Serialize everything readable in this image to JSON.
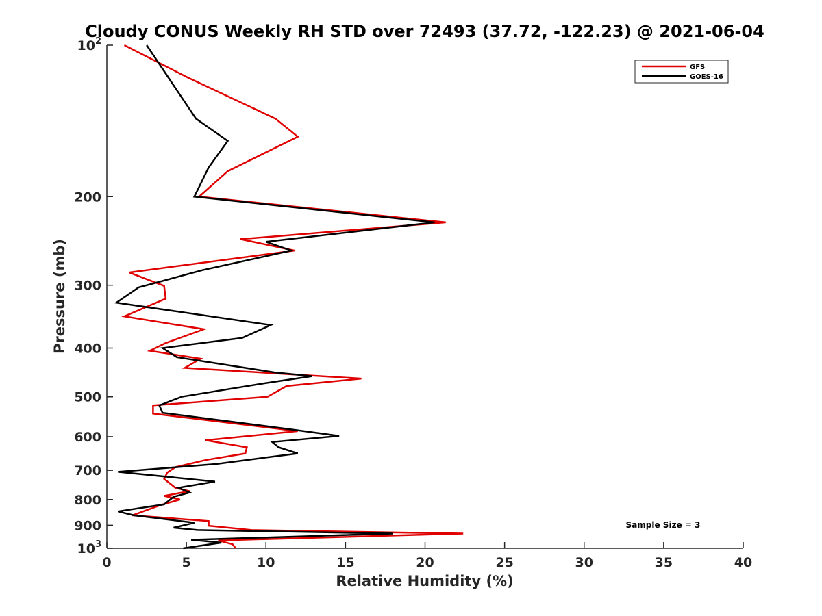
{
  "chart_data": {
    "type": "line",
    "title": "Cloudy CONUS Weekly RH STD over 72493 (37.72, -122.23) @ 2021-06-04",
    "xlabel": "Relative Humidity (%)",
    "ylabel": "Pressure (mb)",
    "xlim": [
      0,
      40
    ],
    "ylim": [
      100,
      1000
    ],
    "y_scale": "log",
    "y_reversed": true,
    "grid": false,
    "legend_position": "top-right",
    "x_ticks": [
      "0",
      "5",
      "10",
      "15",
      "20",
      "25",
      "30",
      "35",
      "40"
    ],
    "x_tick_values": [
      0,
      5,
      10,
      15,
      20,
      25,
      30,
      35,
      40
    ],
    "y_ticks": [
      {
        "value": 100,
        "base": "10",
        "exp": "2"
      },
      {
        "value": 200,
        "base": "200",
        "exp": ""
      },
      {
        "value": 300,
        "base": "300",
        "exp": ""
      },
      {
        "value": 400,
        "base": "400",
        "exp": ""
      },
      {
        "value": 500,
        "base": "500",
        "exp": ""
      },
      {
        "value": 600,
        "base": "600",
        "exp": ""
      },
      {
        "value": 700,
        "base": "700",
        "exp": ""
      },
      {
        "value": 800,
        "base": "800",
        "exp": ""
      },
      {
        "value": 900,
        "base": "900",
        "exp": ""
      },
      {
        "value": 1000,
        "base": "10",
        "exp": "3"
      }
    ],
    "annotation": "Sample Size = 3",
    "series": [
      {
        "name": "GFS",
        "color": "#e00000",
        "points": [
          [
            1.1,
            100
          ],
          [
            5.1,
            116
          ],
          [
            10.6,
            140
          ],
          [
            12.0,
            152
          ],
          [
            7.6,
            178
          ],
          [
            5.8,
            200
          ],
          [
            21.3,
            225
          ],
          [
            8.4,
            243
          ],
          [
            11.8,
            256
          ],
          [
            1.4,
            283
          ],
          [
            3.6,
            301
          ],
          [
            3.7,
            319
          ],
          [
            1.1,
            346
          ],
          [
            6.1,
            367
          ],
          [
            3.7,
            391
          ],
          [
            2.7,
            405
          ],
          [
            5.9,
            420
          ],
          [
            4.9,
            438
          ],
          [
            16.0,
            460
          ],
          [
            11.3,
            476
          ],
          [
            10.1,
            500
          ],
          [
            2.9,
            520
          ],
          [
            2.9,
            540
          ],
          [
            12.0,
            585
          ],
          [
            6.2,
            610
          ],
          [
            8.8,
            630
          ],
          [
            8.7,
            648
          ],
          [
            6.2,
            668
          ],
          [
            4.3,
            690
          ],
          [
            3.8,
            707
          ],
          [
            3.6,
            728
          ],
          [
            4.3,
            758
          ],
          [
            5.2,
            770
          ],
          [
            3.6,
            787
          ],
          [
            4.6,
            800
          ],
          [
            3.4,
            820
          ],
          [
            1.6,
            860
          ],
          [
            6.4,
            883
          ],
          [
            6.4,
            902
          ],
          [
            9.1,
            920
          ],
          [
            22.4,
            935
          ],
          [
            7.0,
            965
          ],
          [
            7.9,
            982
          ],
          [
            8.1,
            1000
          ]
        ]
      },
      {
        "name": "GOES-16",
        "color": "#000000",
        "points": [
          [
            2.5,
            100
          ],
          [
            5.6,
            140
          ],
          [
            7.6,
            155
          ],
          [
            6.4,
            175
          ],
          [
            5.5,
            200
          ],
          [
            20.6,
            225
          ],
          [
            10.0,
            246
          ],
          [
            11.6,
            256
          ],
          [
            6.0,
            280
          ],
          [
            2.0,
            303
          ],
          [
            0.6,
            325
          ],
          [
            10.3,
            360
          ],
          [
            8.5,
            382
          ],
          [
            3.5,
            400
          ],
          [
            4.4,
            417
          ],
          [
            10.5,
            447
          ],
          [
            12.9,
            455
          ],
          [
            9.9,
            470
          ],
          [
            4.7,
            500
          ],
          [
            3.3,
            520
          ],
          [
            3.5,
            538
          ],
          [
            11.5,
            580
          ],
          [
            14.6,
            598
          ],
          [
            10.4,
            615
          ],
          [
            10.8,
            630
          ],
          [
            12.0,
            648
          ],
          [
            10.0,
            660
          ],
          [
            6.9,
            680
          ],
          [
            0.7,
            705
          ],
          [
            6.8,
            737
          ],
          [
            4.5,
            758
          ],
          [
            5.2,
            775
          ],
          [
            4.2,
            790
          ],
          [
            3.6,
            818
          ],
          [
            0.7,
            845
          ],
          [
            1.7,
            860
          ],
          [
            5.5,
            890
          ],
          [
            4.2,
            910
          ],
          [
            5.7,
            920
          ],
          [
            18.0,
            935
          ],
          [
            5.3,
            962
          ],
          [
            7.2,
            975
          ],
          [
            4.8,
            1000
          ]
        ]
      }
    ]
  }
}
